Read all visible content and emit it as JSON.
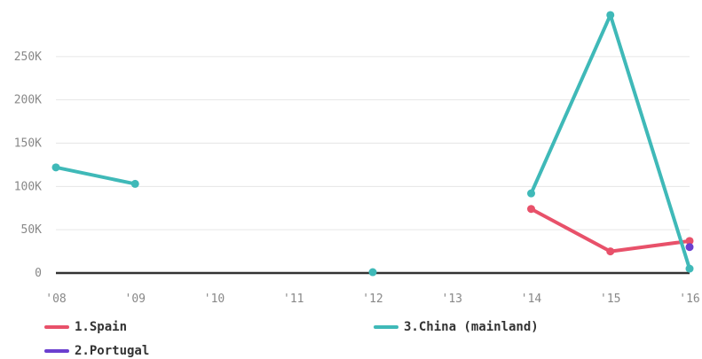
{
  "chart_data": {
    "type": "line",
    "x": [
      "'08",
      "'09",
      "'10",
      "'11",
      "'12",
      "'13",
      "'14",
      "'15",
      "'16"
    ],
    "ylim": [
      0,
      300000
    ],
    "yticks": [
      0,
      50000,
      100000,
      150000,
      200000,
      250000
    ],
    "ytick_labels": [
      "0",
      "50K",
      "100K",
      "150K",
      "200K",
      "250K"
    ],
    "grid": true,
    "legend_placement": "bottom",
    "series": [
      {
        "name": "1.Spain",
        "color": "#e8516a",
        "values": [
          null,
          null,
          null,
          null,
          null,
          null,
          74000,
          25000,
          37000
        ]
      },
      {
        "name": "3.China (mainland)",
        "color": "#3fb9b8",
        "values": [
          122000,
          103000,
          null,
          null,
          1000,
          null,
          92000,
          298000,
          5000
        ]
      },
      {
        "name": "2.Portugal",
        "color": "#6b3fcf",
        "values": [
          null,
          null,
          null,
          null,
          null,
          null,
          null,
          null,
          30000
        ]
      }
    ]
  }
}
